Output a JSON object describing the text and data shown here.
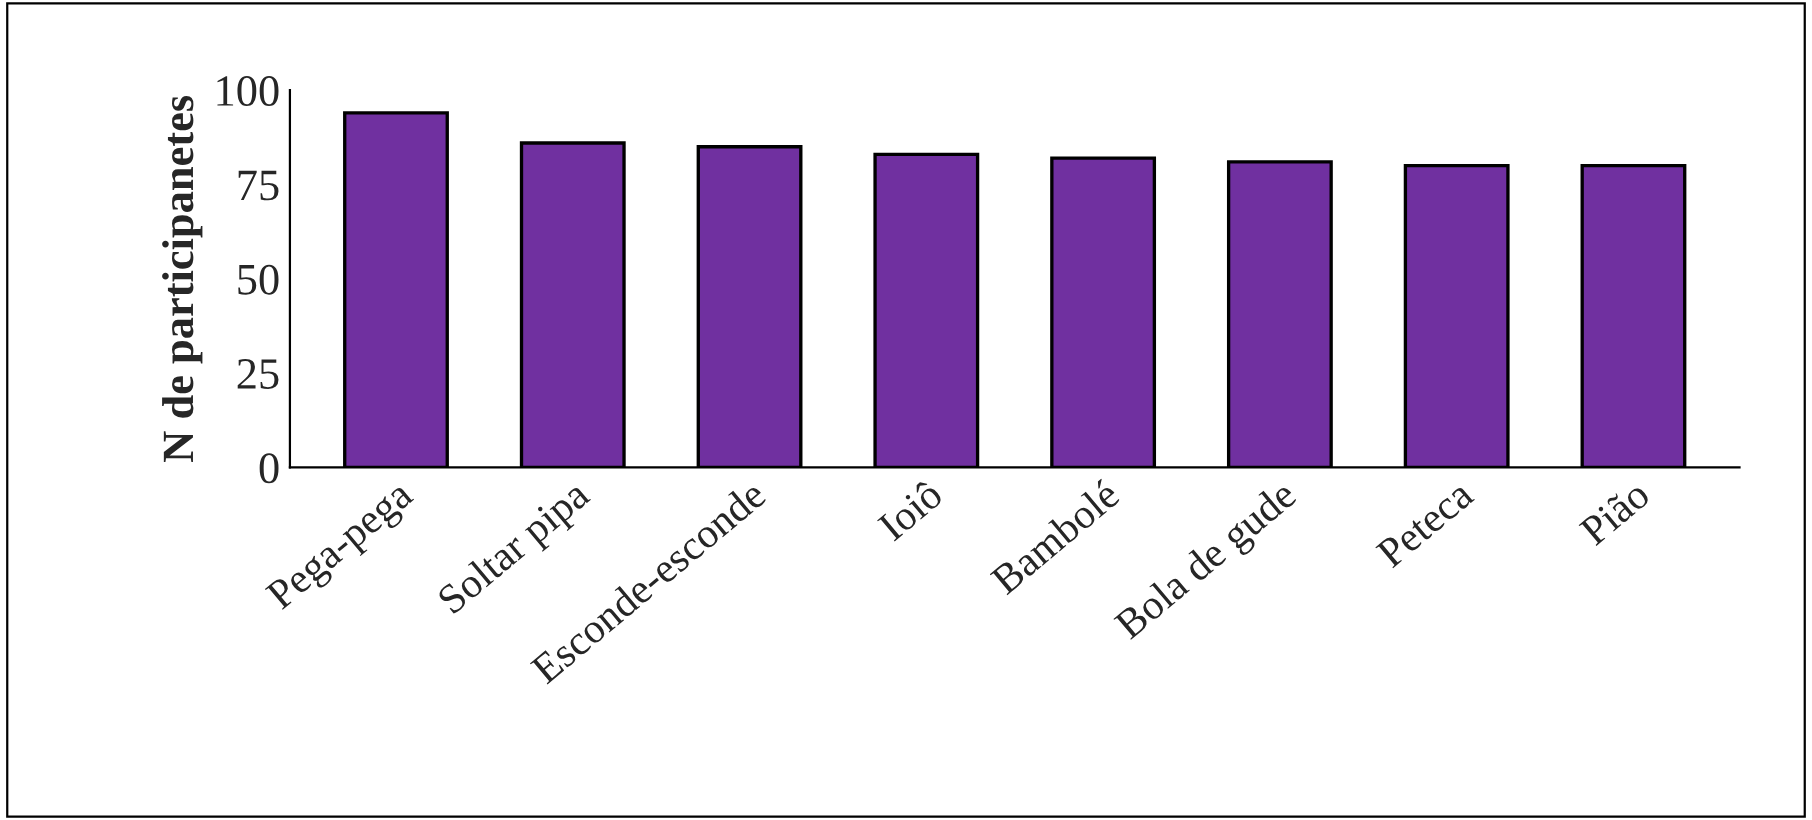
{
  "chart_data": {
    "type": "bar",
    "ylabel": "N de participanetes",
    "categories": [
      "Pega-pega",
      "Soltar pipa",
      "Esconde-esconde",
      "Ioiô",
      "Bambolé",
      "Bola de gude",
      "Peteca",
      "Pião"
    ],
    "values": [
      94,
      86,
      85,
      83,
      82,
      81,
      80,
      80
    ],
    "color": "#7030a0",
    "ylim": [
      0,
      100
    ],
    "yticks": [
      0,
      25,
      50,
      75,
      100
    ],
    "grid": false
  }
}
